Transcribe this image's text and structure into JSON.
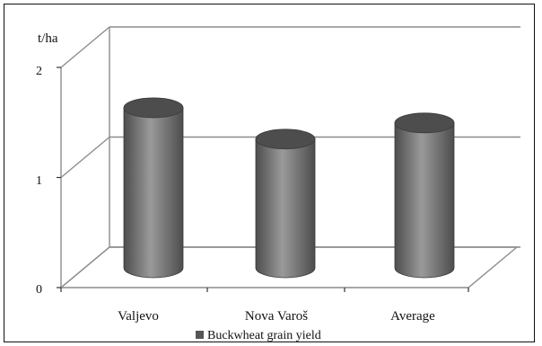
{
  "chart_data": {
    "type": "bar",
    "style": "3d-cylinder",
    "title": "",
    "xlabel": "",
    "ylabel": "t/ha",
    "categories": [
      "Valjevo",
      "Nova Varoš",
      "Average"
    ],
    "series": [
      {
        "name": "Buckwheat grain yield",
        "values": [
          1.69,
          1.36,
          1.53
        ]
      }
    ],
    "ylim": [
      0,
      2
    ],
    "yticks": [
      "0",
      "1",
      "2"
    ],
    "grid": true,
    "legend": "bottom",
    "colors": {
      "bar": "#7a7a7a",
      "bar_dark": "#4d4d4d",
      "bar_light": "#9a9a9a",
      "grid": "#8c8c8c",
      "text": "#111111"
    }
  }
}
